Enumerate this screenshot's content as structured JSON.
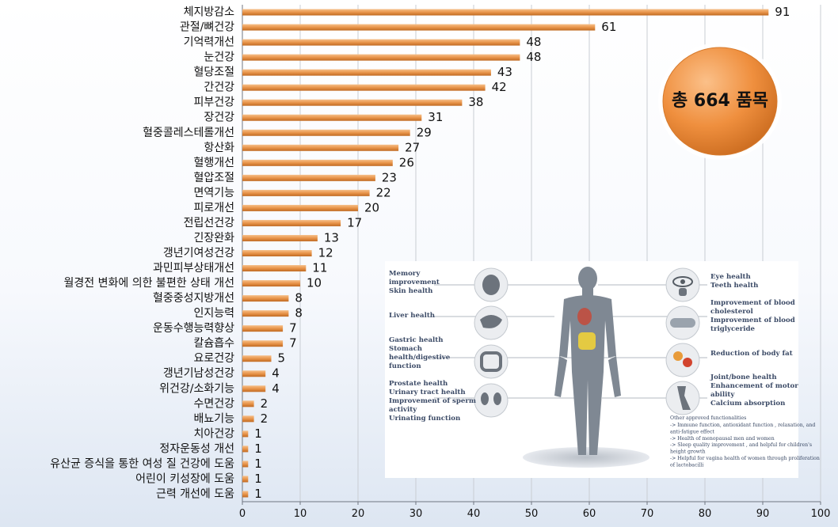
{
  "chart_data": {
    "type": "bar",
    "orientation": "horizontal",
    "categories": [
      "체지방감소",
      "관절/뼈건강",
      "기억력개선",
      "눈건강",
      "혈당조절",
      "간건강",
      "피부건강",
      "장건강",
      "혈중콜레스테롤개선",
      "항산화",
      "혈행개선",
      "혈압조절",
      "면역기능",
      "피로개선",
      "전립선건강",
      "긴장완화",
      "갱년기여성건강",
      "과민피부상태개선",
      "월경전 변화에 의한 불편한 상태 개선",
      "혈중중성지방개선",
      "인지능력",
      "운동수행능력향상",
      "칼슘흡수",
      "요로건강",
      "갱년기남성건강",
      "위건강/소화기능",
      "수면건강",
      "배뇨기능",
      "치아건강",
      "정자운동성 개선",
      "유산균 증식을 통한 여성 질 건강에 도움",
      "어린이 키성장에 도움",
      "근력 개선에 도움"
    ],
    "values": [
      91,
      61,
      48,
      48,
      43,
      42,
      38,
      31,
      29,
      27,
      26,
      23,
      22,
      20,
      17,
      13,
      12,
      11,
      10,
      8,
      8,
      7,
      7,
      5,
      4,
      4,
      2,
      2,
      1,
      1,
      1,
      1,
      1
    ],
    "xlim": [
      0,
      100
    ],
    "xticks": [
      0,
      10,
      20,
      30,
      40,
      50,
      60,
      70,
      80,
      90,
      100
    ],
    "grid": true,
    "bar_color": "#e8944a",
    "annotation": "총 664 품목"
  },
  "inset": {
    "left_labels": [
      [
        "Memory",
        "improvement",
        "Skin health"
      ],
      [
        "Liver health"
      ],
      [
        "Gastric health",
        "Stomach",
        "health/digestive",
        "function"
      ],
      [
        "Prostate health",
        "Urinary tract health",
        "Improvement of sperm",
        "activity",
        "Urinating function"
      ]
    ],
    "right_labels": [
      [
        "Eye health",
        "Teeth health"
      ],
      [
        "Improvement of blood",
        "cholesterol",
        "Improvement of blood",
        "triglyceride"
      ],
      [
        "Reduction of body fat"
      ],
      [
        "Joint/bone health",
        "Enhancement of motor",
        "ability",
        "Calcium absorption"
      ]
    ],
    "other_title": "Other approved functionalities",
    "other_lines": [
      "-> Immune function, antioxidant function , relaxation, and",
      "anti-fatigue effect",
      "-> Health of menopausal men and women",
      "-> Sleep quality improvement , and helpful for children's",
      "height growth",
      "-> Helpful for vagina health of women through proliferation",
      "of lactobacilli"
    ]
  }
}
